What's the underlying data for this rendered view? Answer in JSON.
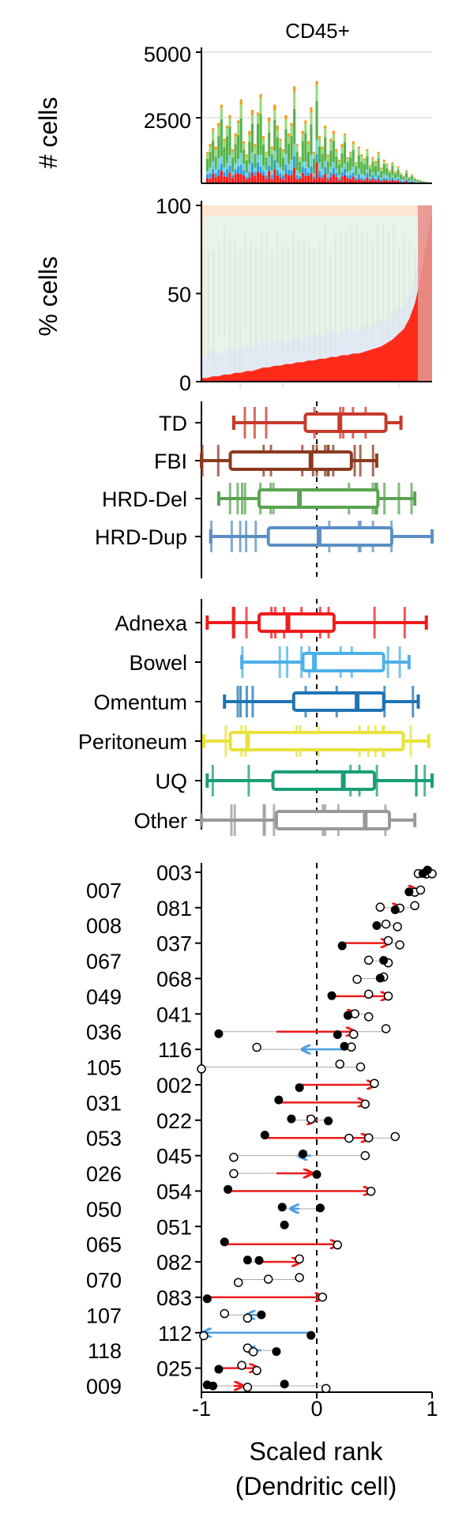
{
  "colors": {
    "TD": "#c8392b",
    "FBI": "#8b3a1f",
    "HRD-Del": "#5aa352",
    "HRD-Dup": "#5b8fc4",
    "Adnexa": "#ee1c1c",
    "Bowel": "#4db0e8",
    "Omentum": "#1f74b4",
    "Peritoneum": "#e8e23c",
    "UQ": "#1a9e77",
    "Other": "#999999",
    "increase_arrow": "#ee1c1c",
    "decrease_arrow": "#4a9fe0"
  },
  "chart_data": [
    {
      "type": "bar",
      "title": "CD45+",
      "ylabel": "# cells",
      "yticks": [
        "2500",
        "5000"
      ],
      "ylim": [
        0,
        5000
      ],
      "grid": true,
      "stacked": true,
      "bar_count": 80,
      "totals": [
        1200,
        1500,
        2100,
        1400,
        2300,
        3000,
        1700,
        2200,
        2600,
        1300,
        1900,
        2400,
        3200,
        1600,
        1100,
        2000,
        2800,
        1500,
        2700,
        3400,
        1800,
        1200,
        2500,
        1400,
        3000,
        2200,
        1700,
        1300,
        2600,
        1900,
        2300,
        3700,
        1500,
        1000,
        2000,
        2400,
        1600,
        2900,
        1200,
        3900,
        1800,
        1400,
        2200,
        1100,
        1700,
        2000,
        1300,
        900,
        1500,
        1900,
        1000,
        1200,
        1600,
        800,
        1400,
        1100,
        950,
        1300,
        700,
        1000,
        850,
        1200,
        600,
        900,
        750,
        500,
        800,
        450,
        650,
        400,
        300,
        500,
        250,
        350,
        200,
        150,
        120,
        80,
        60,
        40
      ],
      "composition_colors": [
        "#ff1a1a",
        "#2ba0e0",
        "#6fd0d8",
        "#56b24a",
        "#9adb7a",
        "#f39a1c"
      ]
    },
    {
      "type": "area",
      "ylabel": "% cells",
      "yticks": [
        "0",
        "50",
        "100"
      ],
      "ylim": [
        0,
        100
      ],
      "stacked": true,
      "description_series": [
        {
          "color": "#ff2b1a",
          "values": [
            2,
            2,
            3,
            3,
            4,
            4,
            5,
            5,
            6,
            6,
            7,
            8,
            8,
            9,
            9,
            10,
            10,
            11,
            11,
            12,
            12,
            13,
            13,
            14,
            14,
            15,
            15,
            16,
            16,
            17,
            18,
            19,
            20,
            22,
            24,
            27,
            30,
            36,
            45,
            60,
            80,
            95
          ]
        },
        {
          "color": "#e3e8f5"
        },
        {
          "color": "#e8f3ea"
        },
        {
          "color": "#fde6d2"
        }
      ]
    },
    {
      "type": "box",
      "xlim": [
        -1,
        1
      ],
      "groups": [
        {
          "name": "TD",
          "whisker": [
            -0.72,
            0.73
          ],
          "q1": -0.1,
          "median": 0.2,
          "q3": 0.6
        },
        {
          "name": "FBI",
          "whisker": [
            -1.0,
            0.52
          ],
          "q1": -0.75,
          "median": -0.05,
          "q3": 0.3
        },
        {
          "name": "HRD-Del",
          "whisker": [
            -0.85,
            0.85
          ],
          "q1": -0.5,
          "median": -0.15,
          "q3": 0.53
        },
        {
          "name": "HRD-Dup",
          "whisker": [
            -0.92,
            1.0
          ],
          "q1": -0.42,
          "median": 0.02,
          "q3": 0.65
        }
      ]
    },
    {
      "type": "box",
      "xlim": [
        -1,
        1
      ],
      "groups": [
        {
          "name": "Adnexa",
          "whisker": [
            -0.95,
            0.95
          ],
          "q1": -0.5,
          "median": -0.25,
          "q3": 0.15
        },
        {
          "name": "Bowel",
          "whisker": [
            -0.65,
            0.8
          ],
          "q1": -0.12,
          "median": -0.02,
          "q3": 0.58
        },
        {
          "name": "Omentum",
          "whisker": [
            -0.8,
            0.88
          ],
          "q1": -0.2,
          "median": 0.35,
          "q3": 0.58
        },
        {
          "name": "Peritoneum",
          "whisker": [
            -0.98,
            0.97
          ],
          "q1": -0.75,
          "median": -0.6,
          "q3": 0.75
        },
        {
          "name": "UQ",
          "whisker": [
            -0.95,
            1.0
          ],
          "q1": -0.38,
          "median": 0.23,
          "q3": 0.5
        },
        {
          "name": "Other",
          "whisker": [
            -1.0,
            0.85
          ],
          "q1": -0.35,
          "median": 0.42,
          "q3": 0.63
        }
      ]
    },
    {
      "type": "scatter",
      "xlabel": "Scaled rank",
      "xlabel2": "(Dendritic cell)",
      "xlim": [
        -1,
        1
      ],
      "xticks": [
        "-1",
        "0",
        "1"
      ],
      "zero_line": true,
      "patients": [
        {
          "label": "003",
          "side": "right",
          "filled": [
            0.92,
            0.96
          ],
          "open": [
            0.88,
            0.95,
            1.0
          ],
          "arrow": [
            1.0,
            0.93
          ]
        },
        {
          "label": "007",
          "side": "left",
          "filled": [
            0.8
          ],
          "open": [
            0.85,
            0.9
          ],
          "arrow": [
            0.78,
            0.86
          ]
        },
        {
          "label": "081",
          "side": "right",
          "filled": [
            0.68
          ],
          "open": [
            0.55,
            0.72,
            0.85
          ],
          "arrow": [
            0.66,
            0.72
          ]
        },
        {
          "label": "008",
          "side": "left",
          "filled": [
            0.52
          ],
          "open": [
            0.6,
            0.7
          ],
          "arrow": null
        },
        {
          "label": "037",
          "side": "right",
          "filled": [
            0.22
          ],
          "open": [
            0.62,
            0.72
          ],
          "arrow": [
            0.22,
            0.62
          ]
        },
        {
          "label": "067",
          "side": "left",
          "filled": [
            0.58
          ],
          "open": [
            0.45,
            0.62
          ],
          "arrow": null
        },
        {
          "label": "068",
          "side": "right",
          "filled": [
            0.55
          ],
          "open": [
            0.35,
            0.58
          ],
          "arrow": null
        },
        {
          "label": "049",
          "side": "left",
          "filled": [
            0.13
          ],
          "open": [
            0.45,
            0.62
          ],
          "arrow": [
            0.13,
            0.62
          ]
        },
        {
          "label": "041",
          "side": "right",
          "filled": [
            0.27
          ],
          "open": [
            0.33,
            0.45
          ],
          "arrow": [
            0.27,
            0.33
          ]
        },
        {
          "label": "036",
          "side": "left",
          "filled": [
            -0.85,
            0.18
          ],
          "open": [
            0.32,
            0.6
          ],
          "arrow": [
            -0.35,
            0.32
          ]
        },
        {
          "label": "116",
          "side": "right",
          "filled": [
            0.24
          ],
          "open": [
            -0.52,
            0.3
          ],
          "arrow": [
            0.24,
            -0.12
          ]
        },
        {
          "label": "105",
          "side": "left",
          "filled": [],
          "open": [
            -1.0,
            0.2,
            0.38
          ],
          "arrow": null
        },
        {
          "label": "002",
          "side": "right",
          "filled": [
            -0.15
          ],
          "open": [
            0.5
          ],
          "arrow": [
            -0.15,
            0.5
          ]
        },
        {
          "label": "031",
          "side": "left",
          "filled": [
            -0.33
          ],
          "open": [
            0.42
          ],
          "arrow": [
            -0.33,
            0.42
          ]
        },
        {
          "label": "022",
          "side": "right",
          "filled": [
            -0.22,
            0.1
          ],
          "open": [
            -0.05
          ],
          "arrow": [
            -0.08,
            -0.02
          ]
        },
        {
          "label": "053",
          "side": "left",
          "filled": [
            -0.45
          ],
          "open": [
            0.28,
            0.45,
            0.68
          ],
          "arrow": [
            -0.45,
            0.45
          ]
        },
        {
          "label": "045",
          "side": "right",
          "filled": [
            -0.12
          ],
          "open": [
            -0.72,
            0.42
          ],
          "arrow": [
            -0.05,
            -0.15
          ]
        },
        {
          "label": "026",
          "side": "left",
          "filled": [
            0.0
          ],
          "open": [
            -0.72
          ],
          "arrow": [
            -0.35,
            -0.05
          ]
        },
        {
          "label": "054",
          "side": "right",
          "filled": [
            -0.77
          ],
          "open": [
            0.47
          ],
          "arrow": [
            -0.77,
            0.47
          ]
        },
        {
          "label": "050",
          "side": "left",
          "filled": [
            -0.3,
            0.03
          ],
          "open": [],
          "arrow": [
            -0.15,
            -0.22
          ]
        },
        {
          "label": "051",
          "side": "right",
          "filled": [
            -0.28
          ],
          "open": [],
          "arrow": null
        },
        {
          "label": "065",
          "side": "left",
          "filled": [
            -0.8
          ],
          "open": [
            0.18
          ],
          "arrow": [
            -0.8,
            0.18
          ]
        },
        {
          "label": "082",
          "side": "right",
          "filled": [
            -0.6,
            -0.5
          ],
          "open": [
            -0.15
          ],
          "arrow": [
            -0.5,
            -0.15
          ]
        },
        {
          "label": "070",
          "side": "left",
          "filled": [],
          "open": [
            -0.68,
            -0.42,
            -0.15
          ],
          "arrow": null
        },
        {
          "label": "083",
          "side": "right",
          "filled": [
            -0.95
          ],
          "open": [
            0.05
          ],
          "arrow": [
            -0.95,
            0.05
          ]
        },
        {
          "label": "107",
          "side": "left",
          "filled": [
            -0.48
          ],
          "open": [
            -0.8,
            -0.6
          ],
          "arrow": [
            -0.45,
            -0.6
          ]
        },
        {
          "label": "112",
          "side": "right",
          "filled": [
            -0.05
          ],
          "open": [
            -0.98
          ],
          "arrow": [
            -0.05,
            -0.98
          ]
        },
        {
          "label": "118",
          "side": "left",
          "filled": [
            -0.35
          ],
          "open": [
            -0.6,
            -0.55
          ],
          "arrow": [
            -0.48,
            -0.6
          ]
        },
        {
          "label": "025",
          "side": "right",
          "filled": [
            -0.85
          ],
          "open": [
            -0.65,
            -0.52
          ],
          "arrow": [
            -0.85,
            -0.52
          ]
        },
        {
          "label": "009",
          "side": "left",
          "filled": [
            -0.95,
            -0.9,
            -0.28
          ],
          "open": [
            -0.6,
            0.08
          ],
          "arrow": [
            -0.72,
            -0.65
          ]
        }
      ]
    }
  ]
}
